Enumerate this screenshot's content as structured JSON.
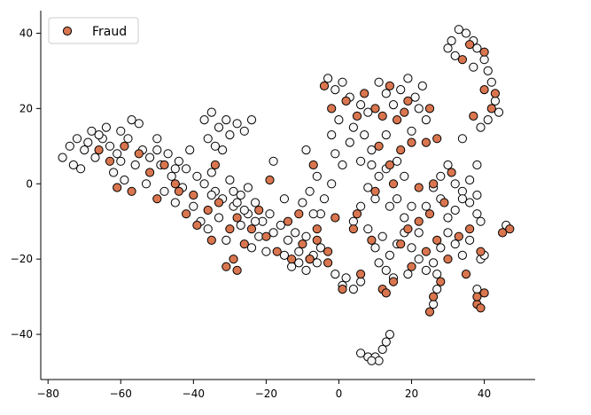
{
  "chart_data": {
    "type": "scatter",
    "title": "",
    "xlabel": "",
    "ylabel": "",
    "xlim": [
      -82,
      54
    ],
    "ylim": [
      -52,
      46
    ],
    "x_ticks": [
      -80,
      -60,
      -40,
      -20,
      0,
      20,
      40
    ],
    "y_ticks": [
      -40,
      -20,
      0,
      20,
      40
    ],
    "grid": false,
    "legend": {
      "position": "top-left",
      "entries": [
        "Fraud"
      ]
    },
    "colors": {
      "fraud": "#d9764f",
      "non_fraud": "#f7f7f7",
      "edge": "#000000",
      "axis": "#000000"
    },
    "series": [
      {
        "name": "Fraud",
        "color": "#d9764f",
        "points": [
          [
            -63,
            6
          ],
          [
            -55,
            8
          ],
          [
            -48,
            5
          ],
          [
            -45,
            0
          ],
          [
            -40,
            -3
          ],
          [
            -36,
            -7
          ],
          [
            -33,
            -5
          ],
          [
            -28,
            -9
          ],
          [
            -24,
            -12
          ],
          [
            -20,
            -14
          ],
          [
            -17,
            -18
          ],
          [
            -13,
            -20
          ],
          [
            -10,
            -16
          ],
          [
            -6,
            -15
          ],
          [
            -3,
            -18
          ],
          [
            -57,
            -2
          ],
          [
            -50,
            -4
          ],
          [
            -42,
            -8
          ],
          [
            -30,
            -12
          ],
          [
            -26,
            -16
          ],
          [
            -31,
            -22
          ],
          [
            -29,
            -20
          ],
          [
            -28,
            -23
          ],
          [
            -19,
            1
          ],
          [
            -4,
            26
          ],
          [
            -2,
            20
          ],
          [
            2,
            22
          ],
          [
            5,
            18
          ],
          [
            7,
            24
          ],
          [
            10,
            20
          ],
          [
            14,
            26
          ],
          [
            12,
            18
          ],
          [
            18,
            19
          ],
          [
            25,
            20
          ],
          [
            27,
            12
          ],
          [
            24,
            11
          ],
          [
            11,
            10
          ],
          [
            14,
            5
          ],
          [
            17,
            9
          ],
          [
            15,
            0
          ],
          [
            10,
            -2
          ],
          [
            5,
            -8
          ],
          [
            -7,
            5
          ],
          [
            -6,
            -12
          ],
          [
            -8,
            -20
          ],
          [
            -3,
            -21
          ],
          [
            1,
            -28
          ],
          [
            6,
            -24
          ],
          [
            12,
            -28
          ],
          [
            15,
            -26
          ],
          [
            13,
            -29
          ],
          [
            20,
            -22
          ],
          [
            24,
            -18
          ],
          [
            27,
            -15
          ],
          [
            30,
            -20
          ],
          [
            33,
            -14
          ],
          [
            36,
            -12
          ],
          [
            35,
            -24
          ],
          [
            39,
            -18
          ],
          [
            40,
            -29
          ],
          [
            38,
            -32
          ],
          [
            39,
            -33
          ],
          [
            38,
            -30
          ],
          [
            45,
            -13
          ],
          [
            47,
            -12
          ],
          [
            26,
            -30
          ],
          [
            25,
            -34
          ],
          [
            28,
            -26
          ],
          [
            17,
            -16
          ],
          [
            19,
            -12
          ],
          [
            22,
            -10
          ],
          [
            25,
            -8
          ],
          [
            29,
            -5
          ],
          [
            22,
            -1
          ],
          [
            26,
            0
          ],
          [
            31,
            3
          ],
          [
            34,
            33
          ],
          [
            36,
            37
          ],
          [
            40,
            35
          ],
          [
            43,
            24
          ],
          [
            42,
            20
          ],
          [
            40,
            25
          ],
          [
            37,
            18
          ],
          [
            19,
            22
          ],
          [
            16,
            17
          ],
          [
            20,
            11
          ],
          [
            9,
            -15
          ],
          [
            4,
            -12
          ],
          [
            -1,
            -9
          ],
          [
            -11,
            -8
          ],
          [
            -14,
            -10
          ],
          [
            -22,
            -7
          ],
          [
            -35,
            -15
          ],
          [
            -39,
            -11
          ],
          [
            -44,
            -2
          ],
          [
            -52,
            3
          ],
          [
            -59,
            10
          ],
          [
            -66,
            9
          ],
          [
            -61,
            -1
          ],
          [
            -34,
            5
          ]
        ]
      },
      {
        "name": "",
        "color": "#f7f7f7",
        "points": [
          [
            -76,
            7
          ],
          [
            -74,
            10
          ],
          [
            -72,
            12
          ],
          [
            -70,
            9
          ],
          [
            -68,
            14
          ],
          [
            -71,
            4
          ],
          [
            -67,
            7
          ],
          [
            -65,
            12
          ],
          [
            -63,
            10
          ],
          [
            -61,
            8
          ],
          [
            -60,
            14
          ],
          [
            -58,
            12
          ],
          [
            -57,
            17
          ],
          [
            -55,
            16
          ],
          [
            -56,
            5
          ],
          [
            -54,
            9
          ],
          [
            -52,
            7
          ],
          [
            -50,
            12
          ],
          [
            -49,
            5
          ],
          [
            -47,
            8
          ],
          [
            -46,
            2
          ],
          [
            -44,
            6
          ],
          [
            -42,
            4
          ],
          [
            -41,
            9
          ],
          [
            -39,
            2
          ],
          [
            -37,
            0
          ],
          [
            -35,
            3
          ],
          [
            -34,
            -2
          ],
          [
            -32,
            -4
          ],
          [
            -30,
            1
          ],
          [
            -29,
            -6
          ],
          [
            -27,
            -3
          ],
          [
            -25,
            -8
          ],
          [
            -23,
            -5
          ],
          [
            -21,
            -10
          ],
          [
            -19,
            -8
          ],
          [
            -18,
            -13
          ],
          [
            -16,
            -11
          ],
          [
            -14,
            -15
          ],
          [
            -12,
            -13
          ],
          [
            -11,
            -18
          ],
          [
            -9,
            -14
          ],
          [
            -7,
            -19
          ],
          [
            -5,
            -17
          ],
          [
            -62,
            3
          ],
          [
            -59,
            1
          ],
          [
            -53,
            0
          ],
          [
            -48,
            -2
          ],
          [
            -45,
            -5
          ],
          [
            -43,
            -1
          ],
          [
            -40,
            -6
          ],
          [
            -38,
            -10
          ],
          [
            -36,
            -12
          ],
          [
            -33,
            -9
          ],
          [
            -31,
            -15
          ],
          [
            -27,
            -11
          ],
          [
            -24,
            -17
          ],
          [
            -22,
            -14
          ],
          [
            -20,
            -18
          ],
          [
            -15,
            -19
          ],
          [
            -13,
            -22
          ],
          [
            -9,
            -23
          ],
          [
            -6,
            -21
          ],
          [
            -37,
            17
          ],
          [
            -35,
            19
          ],
          [
            -33,
            15
          ],
          [
            -31,
            17
          ],
          [
            -36,
            12
          ],
          [
            -34,
            10
          ],
          [
            -30,
            13
          ],
          [
            -28,
            16
          ],
          [
            -26,
            14
          ],
          [
            -24,
            17
          ],
          [
            -32,
            9
          ],
          [
            -29,
            -2
          ],
          [
            -18,
            6
          ],
          [
            -9,
            9
          ],
          [
            -6,
            2
          ],
          [
            -8,
            -2
          ],
          [
            -10,
            -5
          ],
          [
            -5,
            -8
          ],
          [
            -2,
            0
          ],
          [
            -3,
            28
          ],
          [
            -1,
            25
          ],
          [
            1,
            27
          ],
          [
            3,
            23
          ],
          [
            6,
            21
          ],
          [
            8,
            19
          ],
          [
            4,
            15
          ],
          [
            0,
            17
          ],
          [
            -2,
            13
          ],
          [
            3,
            11
          ],
          [
            7,
            13
          ],
          [
            9,
            9
          ],
          [
            6,
            6
          ],
          [
            1,
            5
          ],
          [
            -1,
            8
          ],
          [
            11,
            27
          ],
          [
            13,
            24
          ],
          [
            15,
            21
          ],
          [
            17,
            25
          ],
          [
            19,
            28
          ],
          [
            21,
            23
          ],
          [
            23,
            26
          ],
          [
            22,
            20
          ],
          [
            24,
            17
          ],
          [
            20,
            14
          ],
          [
            13,
            13
          ],
          [
            9,
            5
          ],
          [
            11,
            2
          ],
          [
            13,
            4
          ],
          [
            16,
            6
          ],
          [
            18,
            2
          ],
          [
            8,
            -1
          ],
          [
            10,
            -4
          ],
          [
            6,
            -6
          ],
          [
            4,
            -10
          ],
          [
            8,
            -12
          ],
          [
            10,
            -17
          ],
          [
            12,
            -14
          ],
          [
            14,
            -19
          ],
          [
            16,
            -16
          ],
          [
            18,
            -13
          ],
          [
            20,
            -17
          ],
          [
            14,
            -6
          ],
          [
            16,
            -4
          ],
          [
            18,
            -9
          ],
          [
            20,
            -6
          ],
          [
            11,
            -21
          ],
          [
            13,
            -23
          ],
          [
            15,
            -25
          ],
          [
            19,
            -24
          ],
          [
            22,
            -20
          ],
          [
            24,
            -23
          ],
          [
            26,
            -21
          ],
          [
            28,
            -17
          ],
          [
            30,
            -13
          ],
          [
            32,
            -16
          ],
          [
            34,
            -19
          ],
          [
            36,
            -15
          ],
          [
            38,
            -8
          ],
          [
            36,
            -5
          ],
          [
            34,
            -2
          ],
          [
            32,
            -7
          ],
          [
            30,
            -9
          ],
          [
            28,
            -4
          ],
          [
            26,
            -1
          ],
          [
            24,
            -6
          ],
          [
            22,
            -13
          ],
          [
            28,
            2
          ],
          [
            30,
            5
          ],
          [
            32,
            0
          ],
          [
            34,
            -4
          ],
          [
            36,
            1
          ],
          [
            38,
            -3
          ],
          [
            27,
            -28
          ],
          [
            26,
            -32
          ],
          [
            27,
            -24
          ],
          [
            38,
            -28
          ],
          [
            39,
            -20
          ],
          [
            40,
            -19
          ],
          [
            31,
            38
          ],
          [
            33,
            41
          ],
          [
            35,
            40
          ],
          [
            37,
            38
          ],
          [
            38,
            36
          ],
          [
            40,
            33
          ],
          [
            41,
            30
          ],
          [
            42,
            27
          ],
          [
            43,
            22
          ],
          [
            44,
            19
          ],
          [
            41,
            17
          ],
          [
            39,
            15
          ],
          [
            34,
            12
          ],
          [
            38,
            5
          ],
          [
            39,
            -10
          ],
          [
            46,
            -11
          ],
          [
            30,
            36
          ],
          [
            32,
            34
          ],
          [
            37,
            31
          ],
          [
            6,
            -45
          ],
          [
            8,
            -46
          ],
          [
            10,
            -46
          ],
          [
            12,
            -44
          ],
          [
            13,
            -42
          ],
          [
            14,
            -40
          ],
          [
            11,
            -47
          ],
          [
            9,
            -47
          ],
          [
            2,
            -25
          ],
          [
            4,
            -28
          ],
          [
            6,
            -26
          ],
          [
            1,
            -27
          ],
          [
            -1,
            -24
          ],
          [
            -8,
            -20
          ],
          [
            -11,
            -21
          ],
          [
            -7,
            -8
          ],
          [
            -4,
            -4
          ],
          [
            -28,
            -5
          ],
          [
            -26,
            -7
          ],
          [
            -23,
            -10
          ],
          [
            -64,
            15
          ],
          [
            -66,
            13
          ],
          [
            -69,
            11
          ],
          [
            -73,
            5
          ],
          [
            -60,
            6
          ],
          [
            -50,
            9
          ],
          [
            -45,
            4
          ],
          [
            -35,
            -3
          ],
          [
            -25,
            -1
          ],
          [
            -15,
            -4
          ]
        ]
      }
    ]
  }
}
